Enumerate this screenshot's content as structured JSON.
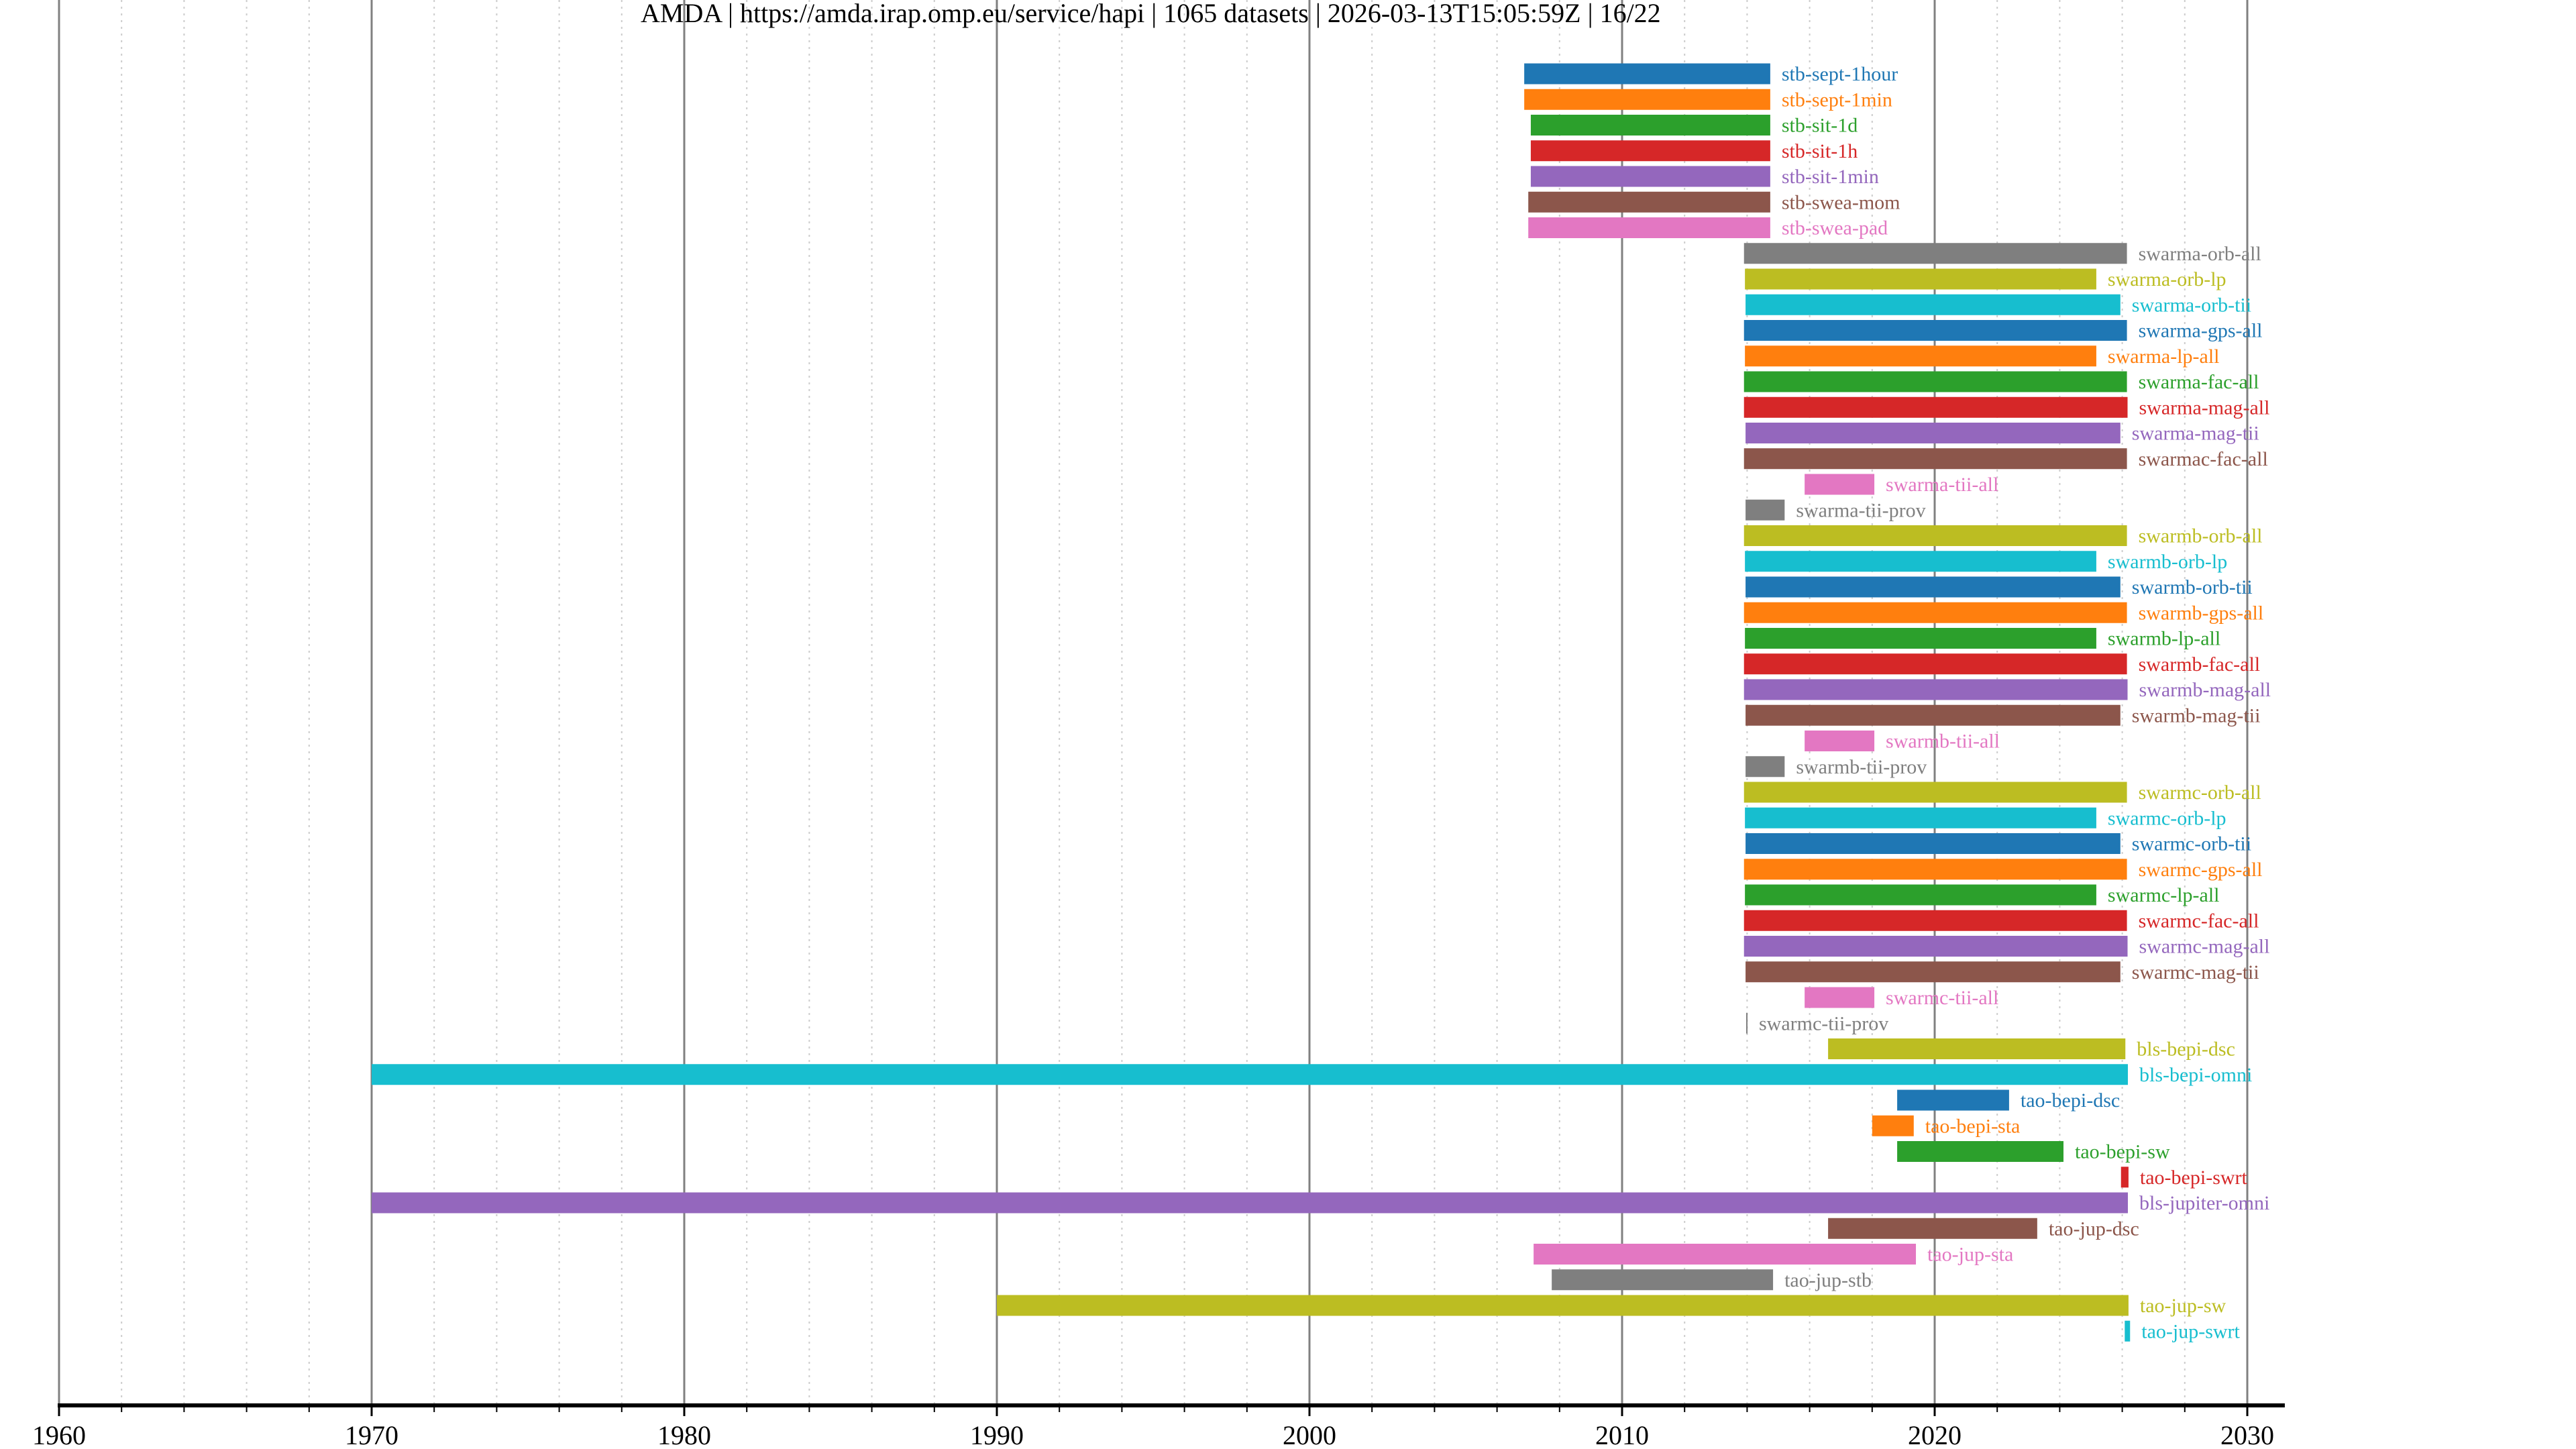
{
  "chart_data": {
    "type": "bar",
    "orientation": "horizontal-timeline",
    "title": "AMDA | https://amda.irap.omp.eu/service/hapi | 1065 datasets | 2026-03-13T15:05:59Z | 16/22",
    "xlabel": "",
    "ylabel": "",
    "xlim": [
      1960,
      2031.2
    ],
    "x_major_ticks": [
      1960,
      1970,
      1980,
      1990,
      2000,
      2010,
      2020,
      2030
    ],
    "x_tick_labels": [
      "1960",
      "1970",
      "1980",
      "1990",
      "2000",
      "2010",
      "2020",
      "2030"
    ],
    "x_minor_step": 2,
    "grid": "major solid, minor dotted (vertical only)",
    "legend": "none (labels placed at right end of each bar)",
    "color_cycle": [
      "#1f77b4",
      "#ff7f0e",
      "#2ca02c",
      "#d62728",
      "#9467bd",
      "#8c564b",
      "#e377c2",
      "#7f7f7f",
      "#bcbd22",
      "#17becf"
    ],
    "series": [
      {
        "name": "stb-sept-1hour",
        "start": 2006.87,
        "stop": 2014.74
      },
      {
        "name": "stb-sept-1min",
        "start": 2006.87,
        "stop": 2014.74
      },
      {
        "name": "stb-sit-1d",
        "start": 2007.08,
        "stop": 2014.74
      },
      {
        "name": "stb-sit-1h",
        "start": 2007.08,
        "stop": 2014.74
      },
      {
        "name": "stb-sit-1min",
        "start": 2007.08,
        "stop": 2014.74
      },
      {
        "name": "stb-swea-mom",
        "start": 2007.0,
        "stop": 2014.74
      },
      {
        "name": "stb-swea-pad",
        "start": 2007.0,
        "stop": 2014.74
      },
      {
        "name": "swarma-orb-all",
        "start": 2013.9,
        "stop": 2026.15
      },
      {
        "name": "swarma-orb-lp",
        "start": 2013.93,
        "stop": 2025.17
      },
      {
        "name": "swarma-orb-tii",
        "start": 2013.95,
        "stop": 2025.94
      },
      {
        "name": "swarma-gps-all",
        "start": 2013.9,
        "stop": 2026.15
      },
      {
        "name": "swarma-lp-all",
        "start": 2013.93,
        "stop": 2025.17
      },
      {
        "name": "swarma-fac-all",
        "start": 2013.9,
        "stop": 2026.15
      },
      {
        "name": "swarma-mag-all",
        "start": 2013.9,
        "stop": 2026.17
      },
      {
        "name": "swarma-mag-tii",
        "start": 2013.95,
        "stop": 2025.94
      },
      {
        "name": "swarmac-fac-all",
        "start": 2013.9,
        "stop": 2026.15
      },
      {
        "name": "swarma-tii-all",
        "start": 2015.84,
        "stop": 2018.07
      },
      {
        "name": "swarma-tii-prov",
        "start": 2013.95,
        "stop": 2015.2
      },
      {
        "name": "swarmb-orb-all",
        "start": 2013.9,
        "stop": 2026.15
      },
      {
        "name": "swarmb-orb-lp",
        "start": 2013.93,
        "stop": 2025.17
      },
      {
        "name": "swarmb-orb-tii",
        "start": 2013.95,
        "stop": 2025.94
      },
      {
        "name": "swarmb-gps-all",
        "start": 2013.9,
        "stop": 2026.15
      },
      {
        "name": "swarmb-lp-all",
        "start": 2013.93,
        "stop": 2025.17
      },
      {
        "name": "swarmb-fac-all",
        "start": 2013.9,
        "stop": 2026.15
      },
      {
        "name": "swarmb-mag-all",
        "start": 2013.9,
        "stop": 2026.17
      },
      {
        "name": "swarmb-mag-tii",
        "start": 2013.95,
        "stop": 2025.94
      },
      {
        "name": "swarmb-tii-all",
        "start": 2015.84,
        "stop": 2018.07
      },
      {
        "name": "swarmb-tii-prov",
        "start": 2013.95,
        "stop": 2015.2
      },
      {
        "name": "swarmc-orb-all",
        "start": 2013.9,
        "stop": 2026.15
      },
      {
        "name": "swarmc-orb-lp",
        "start": 2013.93,
        "stop": 2025.17
      },
      {
        "name": "swarmc-orb-tii",
        "start": 2013.95,
        "stop": 2025.94
      },
      {
        "name": "swarmc-gps-all",
        "start": 2013.9,
        "stop": 2026.15
      },
      {
        "name": "swarmc-lp-all",
        "start": 2013.93,
        "stop": 2025.17
      },
      {
        "name": "swarmc-fac-all",
        "start": 2013.9,
        "stop": 2026.15
      },
      {
        "name": "swarmc-mag-all",
        "start": 2013.9,
        "stop": 2026.17
      },
      {
        "name": "swarmc-mag-tii",
        "start": 2013.95,
        "stop": 2025.94
      },
      {
        "name": "swarmc-tii-all",
        "start": 2015.84,
        "stop": 2018.07
      },
      {
        "name": "swarmc-tii-prov",
        "start": 2013.97,
        "stop": 2014.0
      },
      {
        "name": "bls-bepi-dsc",
        "start": 2016.59,
        "stop": 2026.1
      },
      {
        "name": "bls-bepi-omni",
        "start": 1970.0,
        "stop": 2026.18
      },
      {
        "name": "tao-bepi-dsc",
        "start": 2018.8,
        "stop": 2022.38
      },
      {
        "name": "tao-bepi-sta",
        "start": 2018.0,
        "stop": 2019.33
      },
      {
        "name": "tao-bepi-sw",
        "start": 2018.8,
        "stop": 2024.12
      },
      {
        "name": "tao-bepi-swrt",
        "start": 2025.96,
        "stop": 2026.2
      },
      {
        "name": "bls-jupiter-omni",
        "start": 1970.0,
        "stop": 2026.18
      },
      {
        "name": "tao-jup-dsc",
        "start": 2016.59,
        "stop": 2023.28
      },
      {
        "name": "tao-jup-sta",
        "start": 2007.17,
        "stop": 2019.4
      },
      {
        "name": "tao-jup-stb",
        "start": 2007.75,
        "stop": 2014.83
      },
      {
        "name": "tao-jup-sw",
        "start": 1990.0,
        "stop": 2026.2
      },
      {
        "name": "tao-jup-swrt",
        "start": 2026.08,
        "stop": 2026.25
      }
    ]
  }
}
